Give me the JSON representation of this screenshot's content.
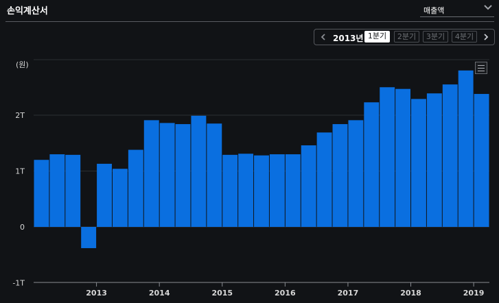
{
  "header": {
    "title": "손익계산서",
    "dropdown_value": "매출액"
  },
  "period_selector": {
    "year": "2013년",
    "quarters": [
      "1분기",
      "2분기",
      "3분기",
      "4분기"
    ],
    "active_index": 0
  },
  "chart_data": {
    "type": "bar",
    "unit_label": "(원)",
    "y_ticks": [
      "2T",
      "1T",
      "0",
      "-1T"
    ],
    "y_tick_values": [
      2,
      1,
      0,
      -1
    ],
    "ylim": [
      -1,
      2.9
    ],
    "x_tick_labels": [
      "2013",
      "2014",
      "2015",
      "2016",
      "2017",
      "2018",
      "2019"
    ],
    "x_tick_after_index": [
      3,
      7,
      11,
      15,
      19,
      23,
      27
    ],
    "grid": true,
    "values": [
      1.2,
      1.3,
      1.29,
      -0.38,
      1.13,
      1.04,
      1.38,
      1.91,
      1.86,
      1.84,
      1.99,
      1.85,
      1.29,
      1.31,
      1.28,
      1.3,
      1.3,
      1.46,
      1.69,
      1.84,
      1.91,
      2.23,
      2.5,
      2.47,
      2.29,
      2.39,
      2.55,
      2.8,
      2.38
    ],
    "bar_color": "#0a6fe0"
  },
  "colors": {
    "background": "#111316",
    "bar": "#0a6fe0",
    "grid": "#2c2f33"
  }
}
